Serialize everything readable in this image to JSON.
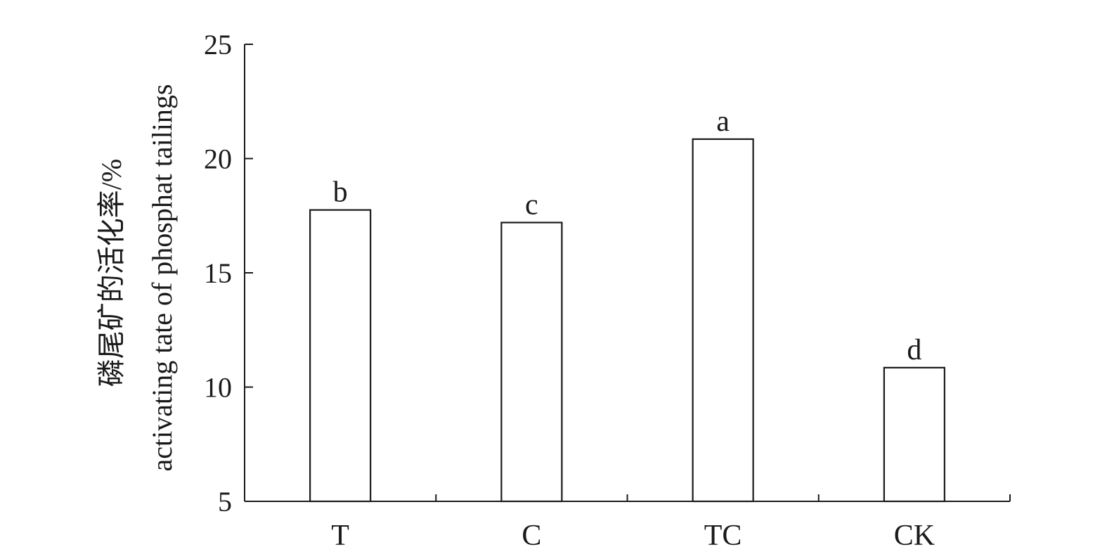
{
  "chart_data": {
    "type": "bar",
    "categories": [
      "T",
      "C",
      "TC",
      "CK"
    ],
    "values": [
      17.75,
      17.2,
      20.85,
      10.85
    ],
    "significance_letters": [
      "b",
      "c",
      "a",
      "d"
    ],
    "ylabel_lines": [
      "磷尾矿的活化率/%",
      "activating tate of phosphat tailings"
    ],
    "xlabel": "",
    "ylim": [
      5,
      25
    ],
    "yticks": [
      5,
      10,
      15,
      20,
      25
    ],
    "grid": false,
    "bar_fill": "#ffffff",
    "bar_stroke": "#1a1a1a"
  }
}
